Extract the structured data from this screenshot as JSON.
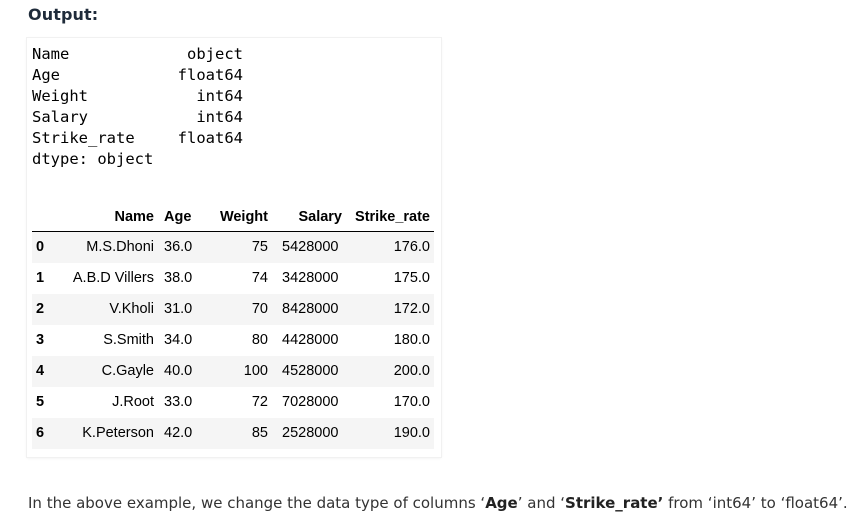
{
  "heading": "Output:",
  "dtypes": {
    "rows": [
      {
        "name": "Name",
        "type": "object"
      },
      {
        "name": "Age",
        "type": "float64"
      },
      {
        "name": "Weight",
        "type": "int64"
      },
      {
        "name": "Salary",
        "type": "int64"
      },
      {
        "name": "Strike_rate",
        "type": "float64"
      }
    ],
    "footer": "dtype: object"
  },
  "table": {
    "columns": [
      "",
      "Name",
      "Age",
      "Weight",
      "Salary",
      "Strike_rate"
    ],
    "rows": [
      {
        "index": "0",
        "name": "M.S.Dhoni",
        "age": "36.0",
        "weight": "75",
        "salary": "5428000",
        "strike_rate": "176.0"
      },
      {
        "index": "1",
        "name": "A.B.D Villers",
        "age": "38.0",
        "weight": "74",
        "salary": "3428000",
        "strike_rate": "175.0"
      },
      {
        "index": "2",
        "name": "V.Kholi",
        "age": "31.0",
        "weight": "70",
        "salary": "8428000",
        "strike_rate": "172.0"
      },
      {
        "index": "3",
        "name": "S.Smith",
        "age": "34.0",
        "weight": "80",
        "salary": "4428000",
        "strike_rate": "180.0"
      },
      {
        "index": "4",
        "name": "C.Gayle",
        "age": "40.0",
        "weight": "100",
        "salary": "4528000",
        "strike_rate": "200.0"
      },
      {
        "index": "5",
        "name": "J.Root",
        "age": "33.0",
        "weight": "72",
        "salary": "7028000",
        "strike_rate": "170.0"
      },
      {
        "index": "6",
        "name": "K.Peterson",
        "age": "42.0",
        "weight": "85",
        "salary": "2528000",
        "strike_rate": "190.0"
      }
    ]
  },
  "note": {
    "part1": "In the above example, we change the data type of columns ‘",
    "bold1": "Age",
    "part2": "’ and ‘",
    "bold2": "Strike_rate’",
    "part3": " from ‘int64’ to ‘float64’."
  }
}
